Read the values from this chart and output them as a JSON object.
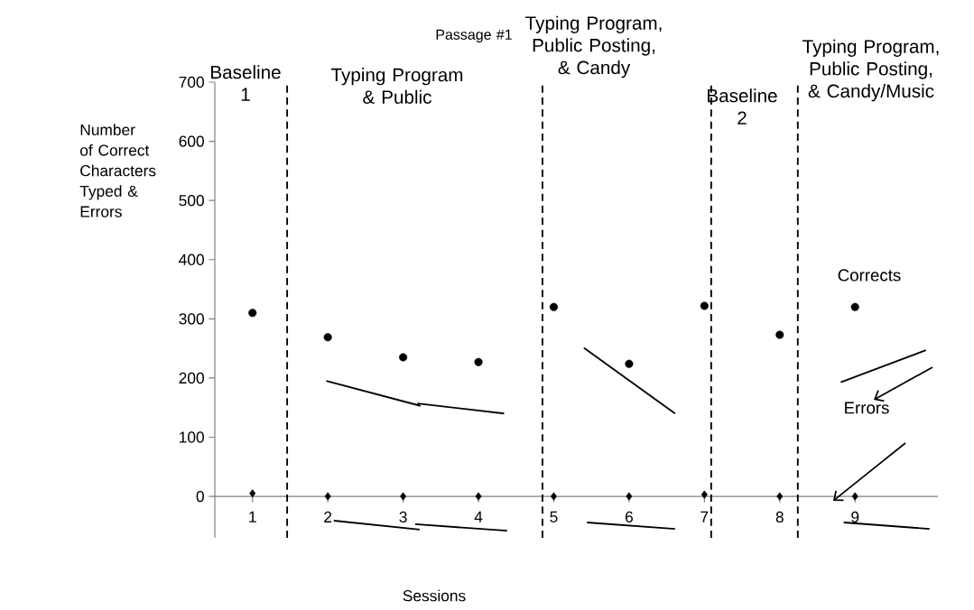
{
  "chart_data": {
    "type": "scatter",
    "xlabel": "Sessions",
    "ylabel": "Number of Correct Characters Typed & Errors",
    "x": [
      1,
      2,
      3,
      4,
      5,
      6,
      7,
      8,
      9
    ],
    "xlim": [
      0.5,
      10.1
    ],
    "xticks": [
      1,
      2,
      3,
      4,
      5,
      6,
      7,
      8,
      9
    ],
    "ylim": [
      -70,
      700
    ],
    "yticks": [
      0,
      100,
      200,
      300,
      400,
      500,
      600,
      700
    ],
    "series": [
      {
        "name": "Corrects",
        "color": "#000000",
        "marker": "circle",
        "values": [
          310,
          269,
          235,
          227,
          320,
          224,
          322,
          273,
          320
        ]
      },
      {
        "name": "Errors",
        "color": "#000000",
        "marker": "diamond",
        "values": [
          5,
          0,
          0,
          0,
          0,
          0,
          3,
          0,
          0
        ]
      },
      {
        "type": "line",
        "color": "#000000",
        "x": [
          1.98,
          3.23
        ],
        "values": [
          195,
          153
        ]
      },
      {
        "type": "line",
        "color": "#000000",
        "x": [
          3.19,
          4.34
        ],
        "values": [
          157,
          140
        ]
      },
      {
        "type": "line",
        "color": "#000000",
        "x": [
          5.4,
          6.61
        ],
        "values": [
          251,
          140
        ]
      },
      {
        "type": "line",
        "color": "#000000",
        "x": [
          8.81,
          9.94
        ],
        "values": [
          193,
          247
        ]
      },
      {
        "type": "line",
        "color": "#000000",
        "x": [
          2.08,
          3.22
        ],
        "values": [
          -41,
          -56
        ]
      },
      {
        "type": "line",
        "color": "#000000",
        "x": [
          3.16,
          4.38
        ],
        "values": [
          -47,
          -58
        ]
      },
      {
        "type": "line",
        "color": "#000000",
        "x": [
          5.44,
          6.61
        ],
        "values": [
          -44,
          -55
        ]
      },
      {
        "type": "line",
        "color": "#000000",
        "x": [
          8.85,
          9.99
        ],
        "values": [
          -44,
          -55
        ]
      }
    ],
    "ref_lines": [
      {
        "axis": "x",
        "value": 1.46,
        "color": "#000000",
        "line_style": "dashed"
      },
      {
        "axis": "x",
        "value": 4.85,
        "color": "#000000",
        "line_style": "dashed"
      },
      {
        "axis": "x",
        "value": 7.09,
        "color": "#000000",
        "line_style": "dashed"
      },
      {
        "axis": "x",
        "value": 8.24,
        "color": "#000000",
        "line_style": "dashed"
      }
    ],
    "annotations": [
      "Baseline 1",
      "Typing Program & Public",
      "Typing Program, Public Posting, & Candy",
      "Baseline 2",
      "Typing Program, Public Posting, & Candy/Music",
      "Passage #1"
    ]
  }
}
